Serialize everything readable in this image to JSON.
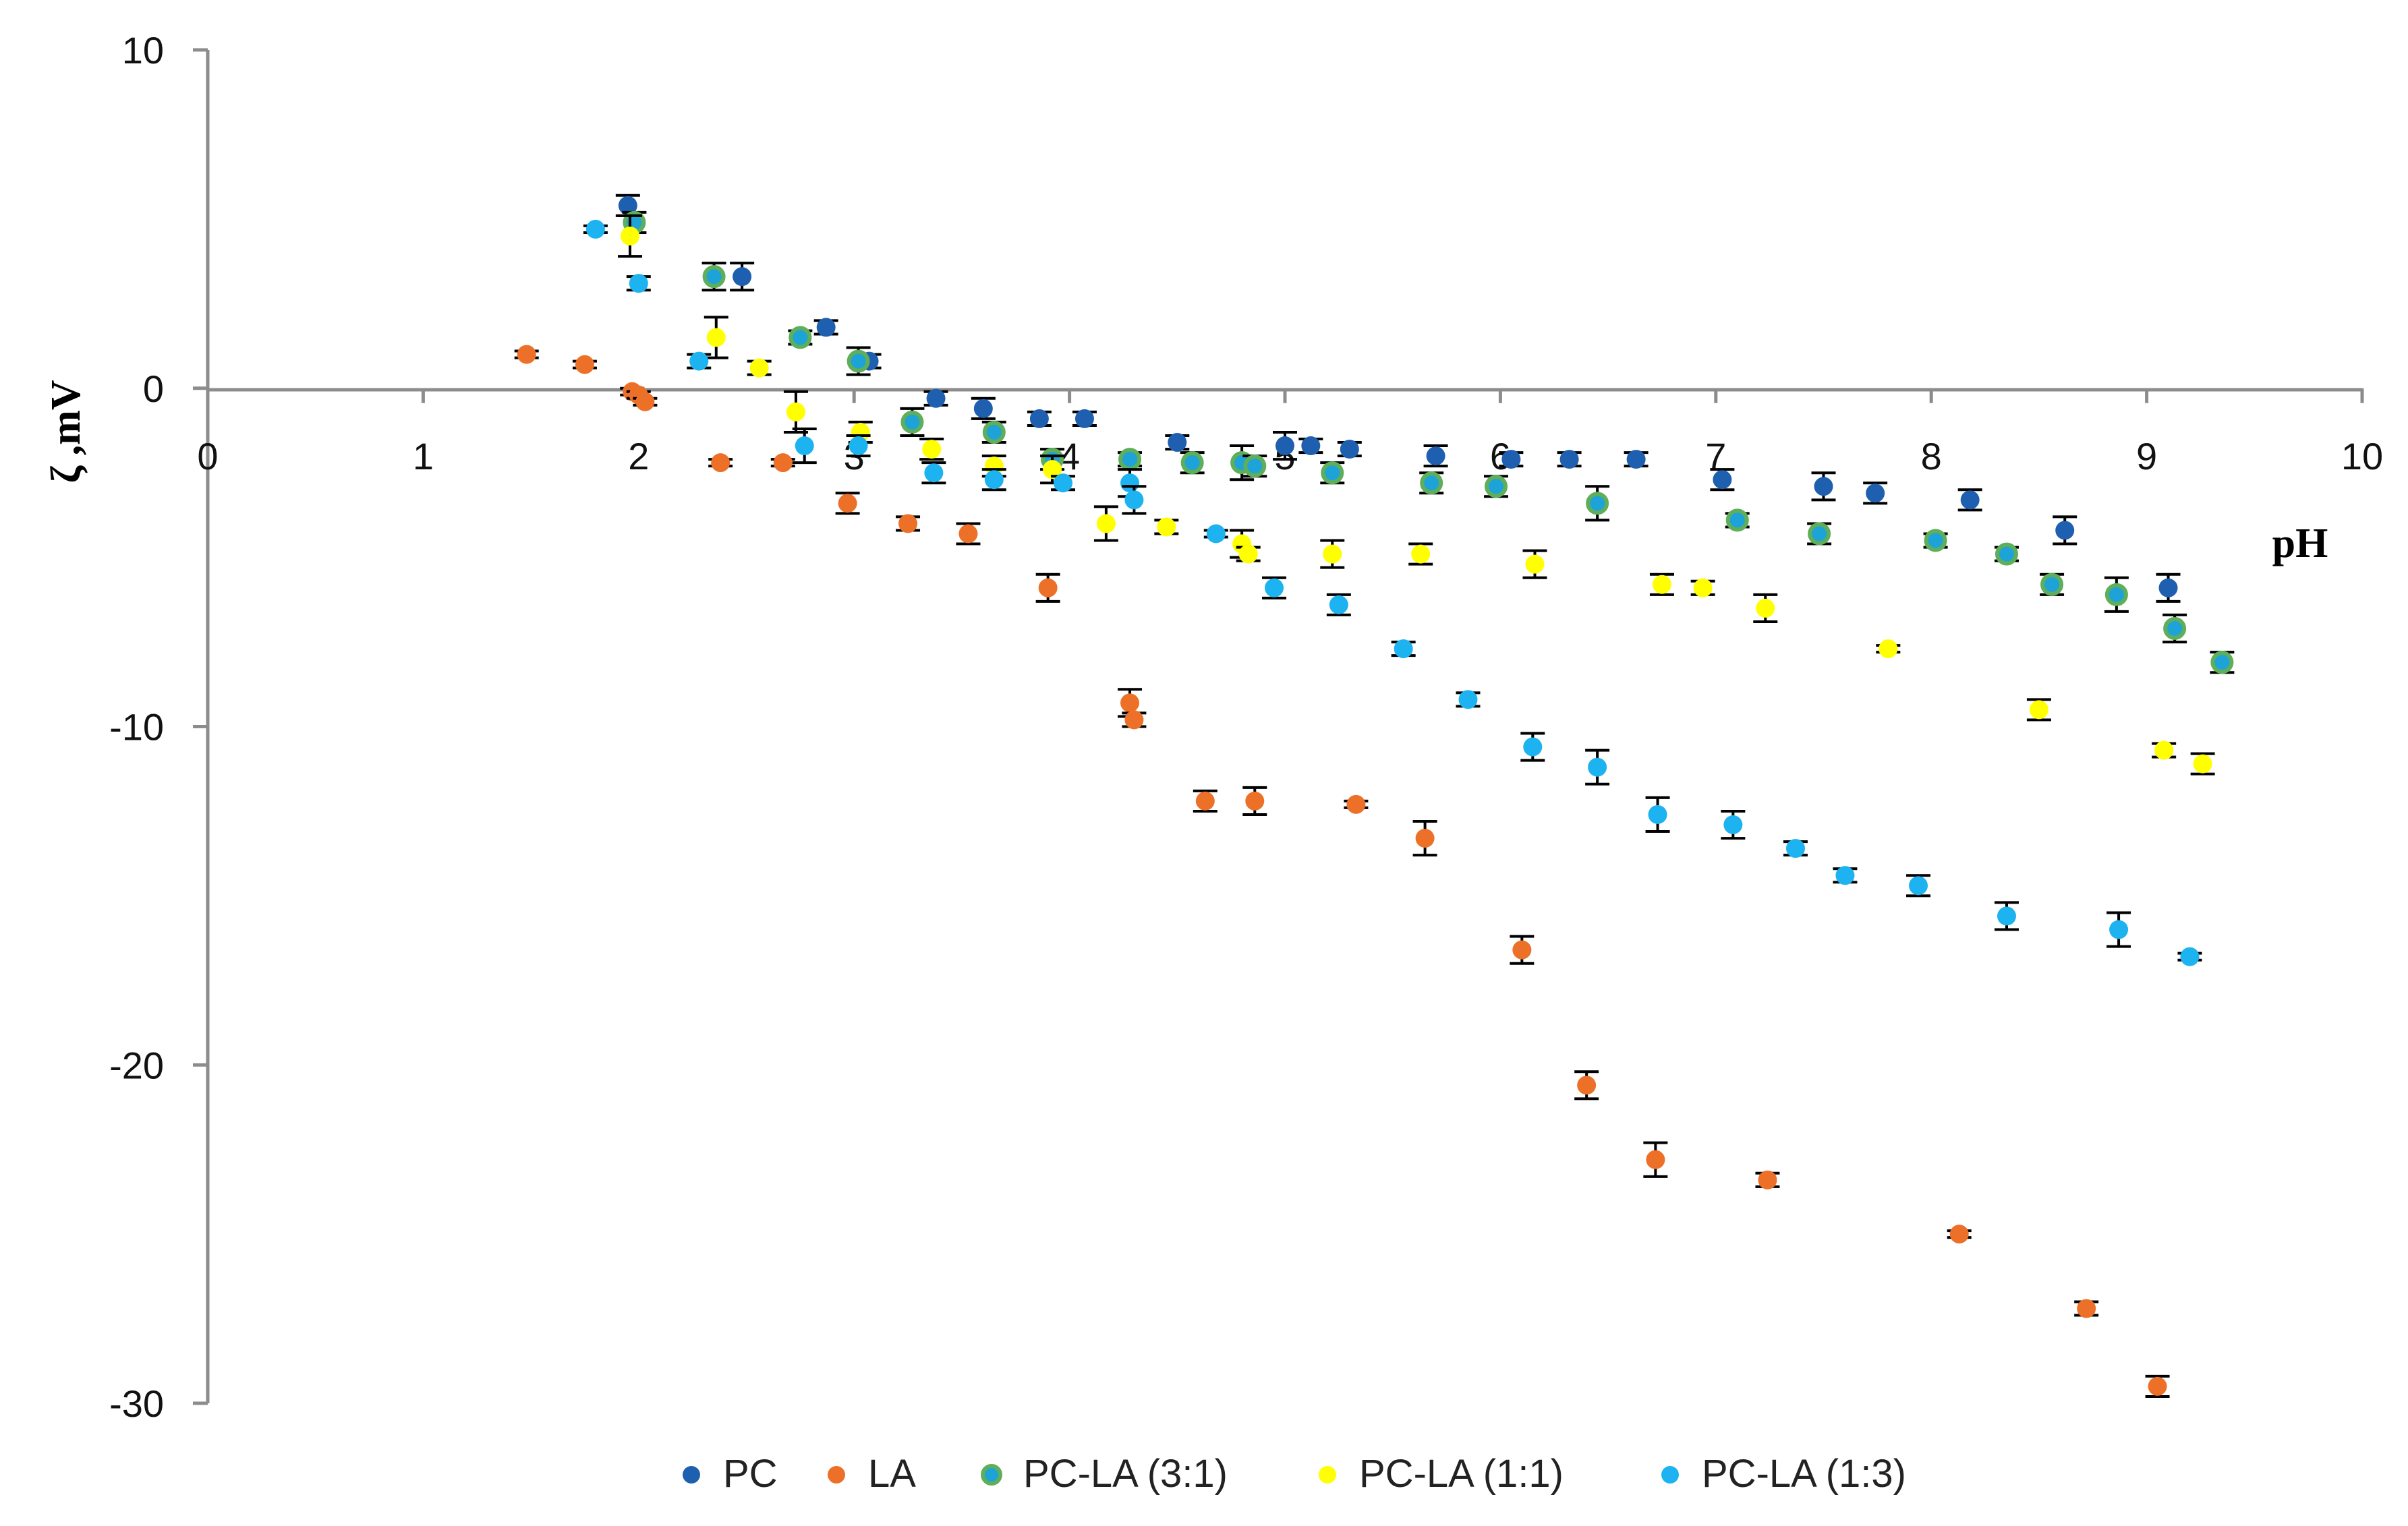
{
  "chart_data": {
    "type": "scatter",
    "title": "",
    "xlabel": "pH",
    "ylabel": "ζ ,mV",
    "xlim": [
      0,
      10
    ],
    "ylim": [
      -30,
      10
    ],
    "xticks": [
      "0",
      "1",
      "2",
      "3",
      "4",
      "5",
      "6",
      "7",
      "8",
      "9",
      "10"
    ],
    "yticks": [
      "10",
      "0",
      "-10",
      "-20",
      "-30"
    ],
    "legend_position": "bottom",
    "series": [
      {
        "name": "PC",
        "color": "#1f5fb0",
        "points": [
          {
            "x": 1.95,
            "y": 5.4,
            "err": 0.3
          },
          {
            "x": 2.48,
            "y": 3.3,
            "err": 0.4
          },
          {
            "x": 2.87,
            "y": 1.8,
            "err": 0.2
          },
          {
            "x": 3.07,
            "y": 0.8,
            "err": 0.2
          },
          {
            "x": 3.38,
            "y": -0.3,
            "err": 0.2
          },
          {
            "x": 3.6,
            "y": -0.6,
            "err": 0.3
          },
          {
            "x": 3.86,
            "y": -0.9,
            "err": 0.2
          },
          {
            "x": 4.07,
            "y": -0.9,
            "err": 0.2
          },
          {
            "x": 4.5,
            "y": -1.6,
            "err": 0.2
          },
          {
            "x": 5.0,
            "y": -1.7,
            "err": 0.4
          },
          {
            "x": 5.12,
            "y": -1.7,
            "err": 0.2
          },
          {
            "x": 5.3,
            "y": -1.8,
            "err": 0.2
          },
          {
            "x": 5.7,
            "y": -2.0,
            "err": 0.3
          },
          {
            "x": 6.05,
            "y": -2.1,
            "err": 0.2
          },
          {
            "x": 6.32,
            "y": -2.1,
            "err": 0.2
          },
          {
            "x": 6.63,
            "y": -2.1,
            "err": 0.2
          },
          {
            "x": 7.03,
            "y": -2.7,
            "err": 0.3
          },
          {
            "x": 7.5,
            "y": -2.9,
            "err": 0.4
          },
          {
            "x": 7.74,
            "y": -3.1,
            "err": 0.3
          },
          {
            "x": 8.18,
            "y": -3.3,
            "err": 0.3
          },
          {
            "x": 8.62,
            "y": -4.2,
            "err": 0.4
          },
          {
            "x": 9.1,
            "y": -5.9,
            "err": 0.4
          }
        ]
      },
      {
        "name": "LA",
        "color": "#ed7028",
        "points": [
          {
            "x": 1.48,
            "y": 1.0,
            "err": 0.1
          },
          {
            "x": 1.75,
            "y": 0.7,
            "err": 0.1
          },
          {
            "x": 1.97,
            "y": -0.1,
            "err": 0.1
          },
          {
            "x": 2.0,
            "y": -0.2,
            "err": 0.1
          },
          {
            "x": 2.03,
            "y": -0.4,
            "err": 0.1
          },
          {
            "x": 2.38,
            "y": -2.2,
            "err": 0.1
          },
          {
            "x": 2.67,
            "y": -2.2,
            "err": 0.1
          },
          {
            "x": 2.97,
            "y": -3.4,
            "err": 0.3
          },
          {
            "x": 3.25,
            "y": -4.0,
            "err": 0.2
          },
          {
            "x": 3.53,
            "y": -4.3,
            "err": 0.3
          },
          {
            "x": 3.9,
            "y": -5.9,
            "err": 0.4
          },
          {
            "x": 4.28,
            "y": -9.3,
            "err": 0.4
          },
          {
            "x": 4.3,
            "y": -9.8,
            "err": 0.2
          },
          {
            "x": 4.63,
            "y": -12.2,
            "err": 0.3
          },
          {
            "x": 4.86,
            "y": -12.2,
            "err": 0.4
          },
          {
            "x": 5.33,
            "y": -12.3,
            "err": 0.1
          },
          {
            "x": 5.65,
            "y": -13.3,
            "err": 0.5
          },
          {
            "x": 6.1,
            "y": -16.6,
            "err": 0.4
          },
          {
            "x": 6.4,
            "y": -20.6,
            "err": 0.4
          },
          {
            "x": 6.72,
            "y": -22.8,
            "err": 0.5
          },
          {
            "x": 7.24,
            "y": -23.4,
            "err": 0.2
          },
          {
            "x": 8.13,
            "y": -25.0,
            "err": 0.1
          },
          {
            "x": 8.72,
            "y": -27.2,
            "err": 0.2
          },
          {
            "x": 9.05,
            "y": -29.5,
            "err": 0.3
          }
        ]
      },
      {
        "name": "PC-LA (3:1)",
        "color": "#5fae5a",
        "points": [
          {
            "x": 1.98,
            "y": 4.9,
            "err": 0.3
          },
          {
            "x": 2.35,
            "y": 3.3,
            "err": 0.4
          },
          {
            "x": 2.75,
            "y": 1.5,
            "err": 0.2
          },
          {
            "x": 3.02,
            "y": 0.8,
            "err": 0.4
          },
          {
            "x": 3.27,
            "y": -1.0,
            "err": 0.4
          },
          {
            "x": 3.65,
            "y": -1.3,
            "err": 0.3
          },
          {
            "x": 3.92,
            "y": -2.1,
            "err": 0.3
          },
          {
            "x": 4.28,
            "y": -2.1,
            "err": 0.2
          },
          {
            "x": 4.57,
            "y": -2.2,
            "err": 0.3
          },
          {
            "x": 4.8,
            "y": -2.2,
            "err": 0.5
          },
          {
            "x": 4.86,
            "y": -2.3,
            "err": 0.3
          },
          {
            "x": 5.22,
            "y": -2.5,
            "err": 0.3
          },
          {
            "x": 5.68,
            "y": -2.8,
            "err": 0.3
          },
          {
            "x": 5.98,
            "y": -2.9,
            "err": 0.3
          },
          {
            "x": 6.45,
            "y": -3.4,
            "err": 0.5
          },
          {
            "x": 7.1,
            "y": -3.9,
            "err": 0.2
          },
          {
            "x": 7.48,
            "y": -4.3,
            "err": 0.3
          },
          {
            "x": 8.02,
            "y": -4.5,
            "err": 0.2
          },
          {
            "x": 8.35,
            "y": -4.9,
            "err": 0.2
          },
          {
            "x": 8.56,
            "y": -5.8,
            "err": 0.3
          },
          {
            "x": 8.86,
            "y": -6.1,
            "err": 0.5
          },
          {
            "x": 9.13,
            "y": -7.1,
            "err": 0.4
          },
          {
            "x": 9.35,
            "y": -8.1,
            "err": 0.3
          }
        ]
      },
      {
        "name": "PC-LA (1:1)",
        "color": "#ffff00",
        "points": [
          {
            "x": 1.96,
            "y": 4.5,
            "err": 0.6
          },
          {
            "x": 2.36,
            "y": 1.5,
            "err": 0.6
          },
          {
            "x": 2.56,
            "y": 0.6,
            "err": 0.2
          },
          {
            "x": 2.73,
            "y": -0.7,
            "err": 0.6
          },
          {
            "x": 3.03,
            "y": -1.3,
            "err": 0.3
          },
          {
            "x": 3.36,
            "y": -1.8,
            "err": 0.3
          },
          {
            "x": 3.65,
            "y": -2.3,
            "err": 0.3
          },
          {
            "x": 3.92,
            "y": -2.4,
            "err": 0.4
          },
          {
            "x": 4.17,
            "y": -4.0,
            "err": 0.5
          },
          {
            "x": 4.45,
            "y": -4.1,
            "err": 0.2
          },
          {
            "x": 4.8,
            "y": -4.6,
            "err": 0.4
          },
          {
            "x": 4.83,
            "y": -4.9,
            "err": 0.2
          },
          {
            "x": 5.22,
            "y": -4.9,
            "err": 0.4
          },
          {
            "x": 5.63,
            "y": -4.9,
            "err": 0.3
          },
          {
            "x": 6.16,
            "y": -5.2,
            "err": 0.4
          },
          {
            "x": 6.75,
            "y": -5.8,
            "err": 0.3
          },
          {
            "x": 6.94,
            "y": -5.9,
            "err": 0.2
          },
          {
            "x": 7.23,
            "y": -6.5,
            "err": 0.4
          },
          {
            "x": 7.8,
            "y": -7.7,
            "err": 0.1
          },
          {
            "x": 8.5,
            "y": -9.5,
            "err": 0.3
          },
          {
            "x": 9.08,
            "y": -10.7,
            "err": 0.2
          },
          {
            "x": 9.26,
            "y": -11.1,
            "err": 0.3
          }
        ]
      },
      {
        "name": "PC-LA (1:3)",
        "color": "#1db3f0",
        "points": [
          {
            "x": 1.8,
            "y": 4.7,
            "err": 0.1
          },
          {
            "x": 2.0,
            "y": 3.1,
            "err": 0.2
          },
          {
            "x": 2.28,
            "y": 0.8,
            "err": 0.2
          },
          {
            "x": 2.77,
            "y": -1.7,
            "err": 0.5
          },
          {
            "x": 3.02,
            "y": -1.7,
            "err": 0.3
          },
          {
            "x": 3.37,
            "y": -2.5,
            "err": 0.3
          },
          {
            "x": 3.65,
            "y": -2.7,
            "err": 0.3
          },
          {
            "x": 3.97,
            "y": -2.8,
            "err": 0.2
          },
          {
            "x": 4.28,
            "y": -2.8,
            "err": 0.4
          },
          {
            "x": 4.3,
            "y": -3.3,
            "err": 0.4
          },
          {
            "x": 4.68,
            "y": -4.3,
            "err": 0.1
          },
          {
            "x": 4.95,
            "y": -5.9,
            "err": 0.3
          },
          {
            "x": 5.25,
            "y": -6.4,
            "err": 0.3
          },
          {
            "x": 5.55,
            "y": -7.7,
            "err": 0.2
          },
          {
            "x": 5.85,
            "y": -9.2,
            "err": 0.2
          },
          {
            "x": 6.15,
            "y": -10.6,
            "err": 0.4
          },
          {
            "x": 6.45,
            "y": -11.2,
            "err": 0.5
          },
          {
            "x": 6.73,
            "y": -12.6,
            "err": 0.5
          },
          {
            "x": 7.08,
            "y": -12.9,
            "err": 0.4
          },
          {
            "x": 7.37,
            "y": -13.6,
            "err": 0.2
          },
          {
            "x": 7.6,
            "y": -14.4,
            "err": 0.2
          },
          {
            "x": 7.94,
            "y": -14.7,
            "err": 0.3
          },
          {
            "x": 8.35,
            "y": -15.6,
            "err": 0.4
          },
          {
            "x": 8.87,
            "y": -16.0,
            "err": 0.5
          },
          {
            "x": 9.2,
            "y": -16.8,
            "err": 0.1
          }
        ]
      }
    ]
  }
}
